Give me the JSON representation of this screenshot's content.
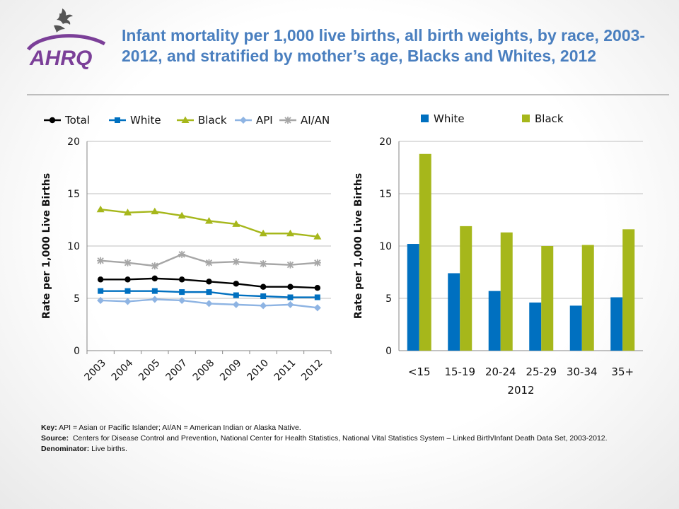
{
  "header": {
    "title": "Infant mortality per 1,000 live births, all birth weights, by race, 2003-2012, and stratified by mother’s age, Blacks and Whites, 2012",
    "logo_text": "AHRQ",
    "icon": "hhs-eagle-icon"
  },
  "chart_data": [
    {
      "type": "line",
      "x": [
        "2003",
        "2004",
        "2005",
        "2007",
        "2008",
        "2009",
        "2010",
        "2011",
        "2012"
      ],
      "ylabel": "Rate per 1,000 Live Births",
      "ylim": [
        0,
        20
      ],
      "yticks": [
        0,
        5,
        10,
        15,
        20
      ],
      "legend": "top",
      "grid": true,
      "series": [
        {
          "name": "Total",
          "color": "#000000",
          "marker": "circle",
          "values": [
            6.8,
            6.8,
            6.9,
            6.8,
            6.6,
            6.4,
            6.1,
            6.1,
            6.0
          ]
        },
        {
          "name": "White",
          "color": "#0070c0",
          "marker": "square",
          "values": [
            5.7,
            5.7,
            5.7,
            5.6,
            5.6,
            5.3,
            5.2,
            5.1,
            5.1
          ]
        },
        {
          "name": "Black",
          "color": "#a6b71b",
          "marker": "triangle",
          "values": [
            13.5,
            13.2,
            13.3,
            12.9,
            12.4,
            12.1,
            11.2,
            11.2,
            10.9
          ]
        },
        {
          "name": "API",
          "color": "#8eb4e3",
          "marker": "diamond",
          "values": [
            4.8,
            4.7,
            4.9,
            4.8,
            4.5,
            4.4,
            4.3,
            4.4,
            4.1
          ]
        },
        {
          "name": "AI/AN",
          "color": "#a6a6a6",
          "marker": "star",
          "values": [
            8.6,
            8.4,
            8.1,
            9.2,
            8.4,
            8.5,
            8.3,
            8.2,
            8.4
          ]
        }
      ]
    },
    {
      "type": "bar",
      "categories": [
        "<15",
        "15-19",
        "20-24",
        "25-29",
        "30-34",
        "35+"
      ],
      "xlabel": "2012",
      "ylabel": "Rate per 1,000 Live Births",
      "ylim": [
        0,
        20
      ],
      "yticks": [
        0,
        5,
        10,
        15,
        20
      ],
      "legend": "top",
      "grid": true,
      "series": [
        {
          "name": "White",
          "color": "#0070c0",
          "values": [
            10.2,
            7.4,
            5.7,
            4.6,
            4.3,
            5.1
          ]
        },
        {
          "name": "Black",
          "color": "#a6b71b",
          "values": [
            18.8,
            11.9,
            11.3,
            10.0,
            10.1,
            11.6
          ]
        }
      ]
    }
  ],
  "footer": {
    "key_label": "Key:",
    "key_text": "API = Asian or Pacific Islander; AI/AN = American Indian or Alaska Native.",
    "source_label": "Source:",
    "source_text": "Centers for Disease Control and Prevention, National Center for Health Statistics, National Vital Statistics System – Linked Birth/Infant Death Data Set, 2003-2012.",
    "denominator_label": "Denominator:",
    "denominator_text": "Live births."
  }
}
